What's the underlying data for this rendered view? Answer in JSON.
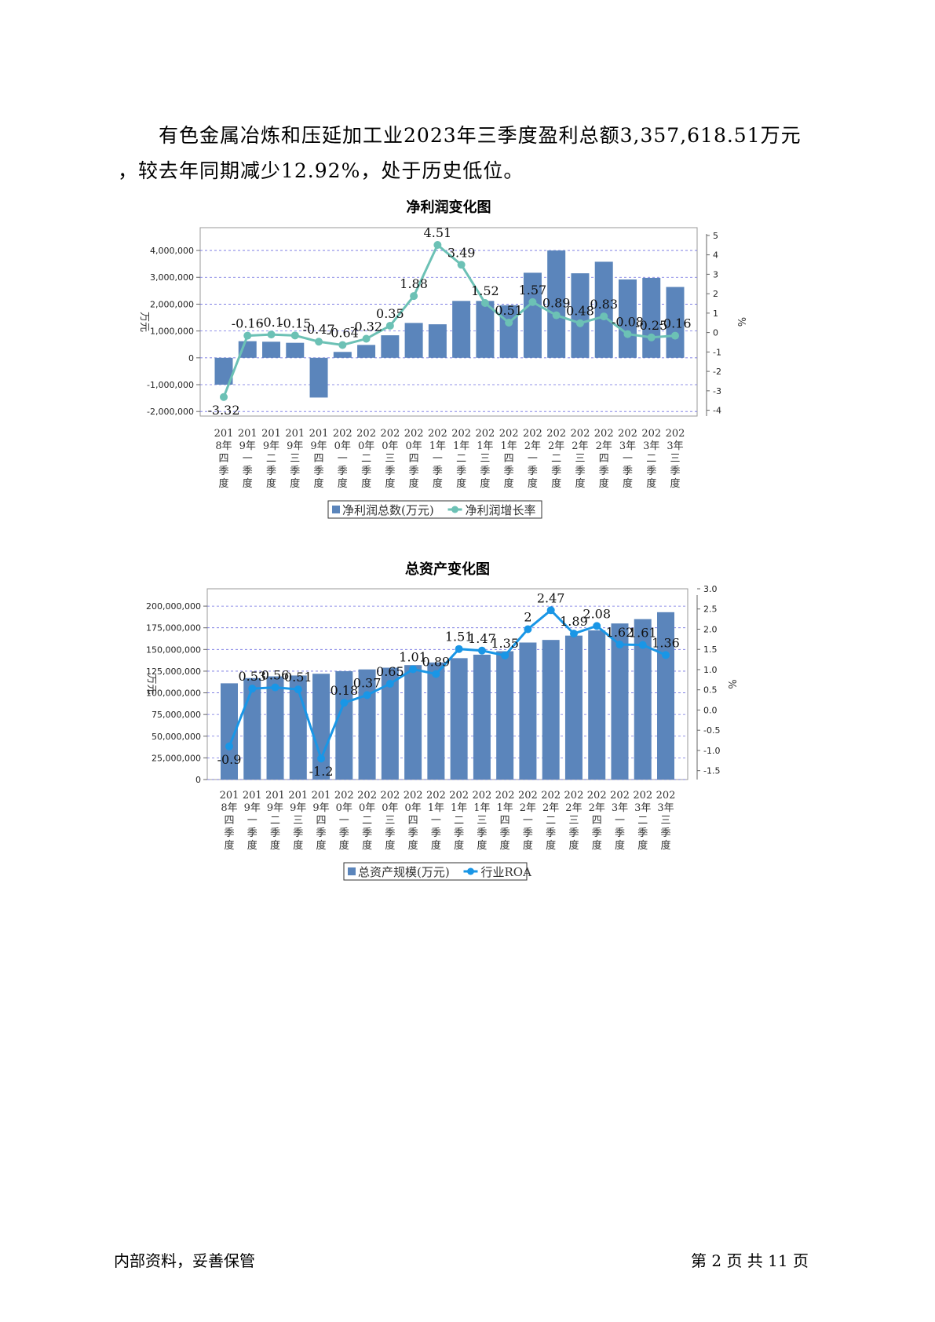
{
  "paragraph": {
    "line1": "有色金属冶炼和压延加工业2023年三季度盈利总额3,357,618.51万元",
    "line2": "，较去年同期减少12.92%，处于历史低位。"
  },
  "footer": {
    "left": "内部资料，妥善保管",
    "right": "第 2 页   共 11 页"
  },
  "colors": {
    "bar": "#5b85bb",
    "line1": "#6cc1b5",
    "line2": "#1996e6",
    "grid": "#6f6fe0"
  },
  "chart_data": [
    {
      "type": "bar+line",
      "title": "净利润变化图",
      "ylabel": "万元",
      "y2label": "%",
      "categories": [
        [
          "201",
          "8年",
          "四",
          "季",
          "度"
        ],
        [
          "201",
          "9年",
          "一",
          "季",
          "度"
        ],
        [
          "201",
          "9年",
          "二",
          "季",
          "度"
        ],
        [
          "201",
          "9年",
          "三",
          "季",
          "度"
        ],
        [
          "201",
          "9年",
          "四",
          "季",
          "度"
        ],
        [
          "202",
          "0年",
          "一",
          "季",
          "度"
        ],
        [
          "202",
          "0年",
          "二",
          "季",
          "度"
        ],
        [
          "202",
          "0年",
          "三",
          "季",
          "度"
        ],
        [
          "202",
          "0年",
          "四",
          "季",
          "度"
        ],
        [
          "202",
          "1年",
          "一",
          "季",
          "度"
        ],
        [
          "202",
          "1年",
          "二",
          "季",
          "度"
        ],
        [
          "202",
          "1年",
          "三",
          "季",
          "度"
        ],
        [
          "202",
          "1年",
          "四",
          "季",
          "度"
        ],
        [
          "202",
          "2年",
          "一",
          "季",
          "度"
        ],
        [
          "202",
          "2年",
          "二",
          "季",
          "度"
        ],
        [
          "202",
          "2年",
          "三",
          "季",
          "度"
        ],
        [
          "202",
          "2年",
          "四",
          "季",
          "度"
        ],
        [
          "202",
          "3年",
          "一",
          "季",
          "度"
        ],
        [
          "202",
          "3年",
          "二",
          "季",
          "度"
        ],
        [
          "202",
          "3年",
          "三",
          "季",
          "度"
        ]
      ],
      "ylim": [
        -2000000,
        4000000
      ],
      "yticks": [
        -2000000,
        -1000000,
        0,
        1000000,
        2000000,
        3000000,
        4000000
      ],
      "y2lim": [
        -4,
        5
      ],
      "y2ticks": [
        -4,
        -3,
        -2,
        -1,
        0,
        1,
        2,
        3,
        4,
        5
      ],
      "series": [
        {
          "name": "净利润总数(万元)",
          "kind": "bar",
          "values": [
            -1000000,
            620000,
            600000,
            560000,
            -1480000,
            220000,
            480000,
            840000,
            1300000,
            1250000,
            2120000,
            2120000,
            1960000,
            3170000,
            4000000,
            3150000,
            3580000,
            2920000,
            2980000,
            2640000
          ]
        },
        {
          "name": "净利润增长率",
          "kind": "line",
          "values": [
            -3.32,
            -0.16,
            -0.1,
            -0.15,
            -0.47,
            -0.64,
            -0.32,
            0.35,
            1.88,
            4.51,
            3.49,
            1.52,
            0.51,
            1.57,
            0.89,
            0.48,
            0.83,
            -0.08,
            -0.25,
            -0.16
          ],
          "labels": [
            "-3.32",
            "-0.16",
            "-0.1",
            "-0.15",
            "-0.47",
            "-0.64",
            "-0.32",
            "0.35",
            "1.88",
            "4.51",
            "3.49",
            "1.52",
            "0.51",
            "1.57",
            "0.89",
            "0.48",
            "0.83",
            "-0.08",
            "-0.25",
            "-0.16"
          ]
        }
      ],
      "legend": "bottom"
    },
    {
      "type": "bar+line",
      "title": "总资产变化图",
      "ylabel": "万元",
      "y2label": "%",
      "categories": [
        [
          "201",
          "8年",
          "四",
          "季",
          "度"
        ],
        [
          "201",
          "9年",
          "一",
          "季",
          "度"
        ],
        [
          "201",
          "9年",
          "二",
          "季",
          "度"
        ],
        [
          "201",
          "9年",
          "三",
          "季",
          "度"
        ],
        [
          "201",
          "9年",
          "四",
          "季",
          "度"
        ],
        [
          "202",
          "0年",
          "一",
          "季",
          "度"
        ],
        [
          "202",
          "0年",
          "二",
          "季",
          "度"
        ],
        [
          "202",
          "0年",
          "三",
          "季",
          "度"
        ],
        [
          "202",
          "0年",
          "四",
          "季",
          "度"
        ],
        [
          "202",
          "1年",
          "一",
          "季",
          "度"
        ],
        [
          "202",
          "1年",
          "二",
          "季",
          "度"
        ],
        [
          "202",
          "1年",
          "三",
          "季",
          "度"
        ],
        [
          "202",
          "1年",
          "四",
          "季",
          "度"
        ],
        [
          "202",
          "2年",
          "一",
          "季",
          "度"
        ],
        [
          "202",
          "2年",
          "二",
          "季",
          "度"
        ],
        [
          "202",
          "2年",
          "三",
          "季",
          "度"
        ],
        [
          "202",
          "2年",
          "四",
          "季",
          "度"
        ],
        [
          "202",
          "3年",
          "一",
          "季",
          "度"
        ],
        [
          "202",
          "3年",
          "二",
          "季",
          "度"
        ],
        [
          "202",
          "3年",
          "三",
          "季",
          "度"
        ]
      ],
      "ylim": [
        0,
        200000000
      ],
      "yticks": [
        0,
        25000000,
        50000000,
        75000000,
        100000000,
        125000000,
        150000000,
        175000000,
        200000000
      ],
      "y2lim": [
        -1.5,
        3.0
      ],
      "y2ticks": [
        -1.5,
        -1.0,
        -0.5,
        0.0,
        0.5,
        1.0,
        1.5,
        2.0,
        2.5,
        3.0
      ],
      "series": [
        {
          "name": "总资产规模(万元)",
          "kind": "bar",
          "values": [
            111000000,
            117000000,
            119000000,
            120000000,
            122000000,
            125000000,
            127000000,
            129000000,
            132000000,
            135000000,
            140000000,
            144000000,
            148000000,
            158000000,
            161000000,
            166000000,
            172000000,
            180000000,
            185000000,
            193000000
          ]
        },
        {
          "name": "行业ROA",
          "kind": "line",
          "values": [
            -0.9,
            0.53,
            0.56,
            0.51,
            -1.2,
            0.18,
            0.37,
            0.65,
            1.01,
            0.89,
            1.51,
            1.47,
            1.35,
            2,
            2.47,
            1.89,
            2.08,
            1.62,
            1.61,
            1.36
          ],
          "labels": [
            "-0.9",
            "0.53",
            "0.56",
            "0.51",
            "-1.2",
            "0.18",
            "0.37",
            "0.65",
            "1.01",
            "0.89",
            "1.51",
            "1.47",
            "1.35",
            "2",
            "2.47",
            "1.89",
            "2.08",
            "1.62",
            "1.61",
            "1.36"
          ]
        }
      ],
      "legend": "bottom"
    }
  ]
}
